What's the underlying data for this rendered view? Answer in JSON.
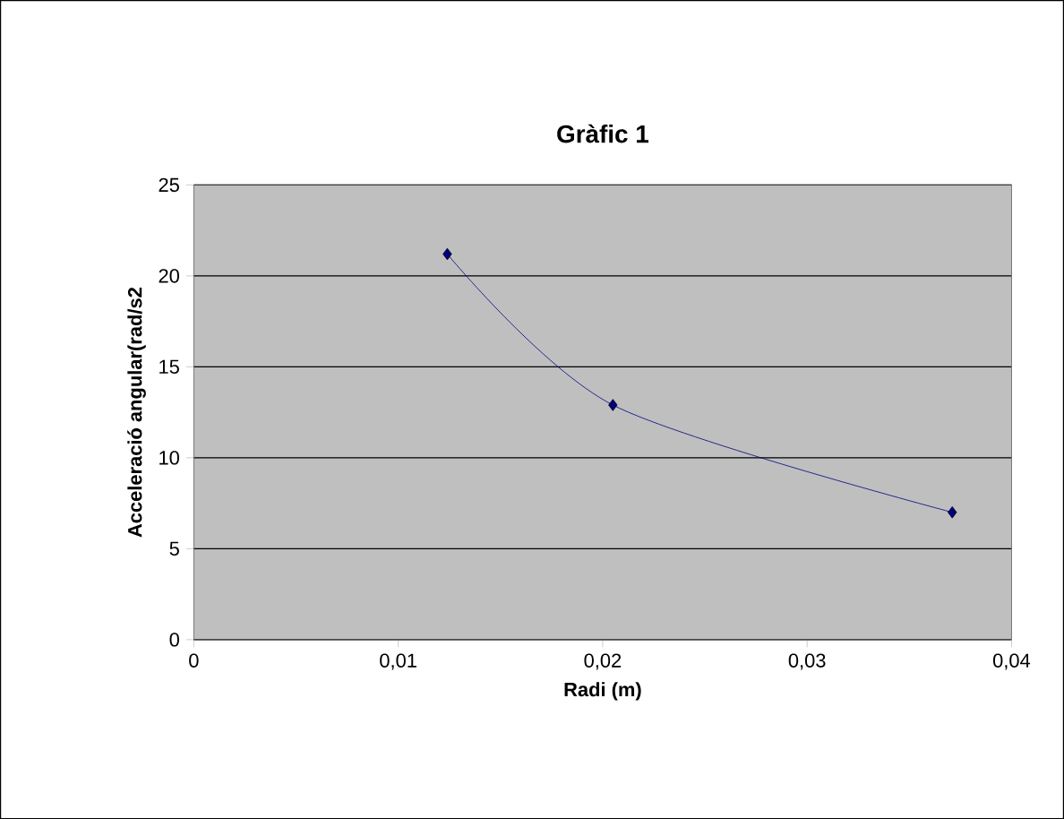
{
  "chart_data": {
    "type": "line",
    "title": "Gràfic 1",
    "xlabel": "Radi (m)",
    "ylabel": "Acceleració angular(rad/s2",
    "x": [
      0.0124,
      0.0205,
      0.0371
    ],
    "series": [
      {
        "color": "#000080",
        "values": [
          21.2,
          12.9,
          7.0
        ]
      }
    ],
    "xlim": [
      0,
      0.04
    ],
    "ylim": [
      0,
      25
    ],
    "xticks": [
      0,
      {
        "value": 0.01,
        "label": "0,01"
      },
      {
        "value": 0.02,
        "label": "0,02"
      },
      {
        "value": 0.03,
        "label": "0,03"
      },
      {
        "value": 0.04,
        "label": "0,04"
      }
    ],
    "yticks": [
      0,
      5,
      10,
      15,
      20,
      25
    ],
    "grid": "y",
    "marker": "diamond",
    "line_style": "solid"
  }
}
